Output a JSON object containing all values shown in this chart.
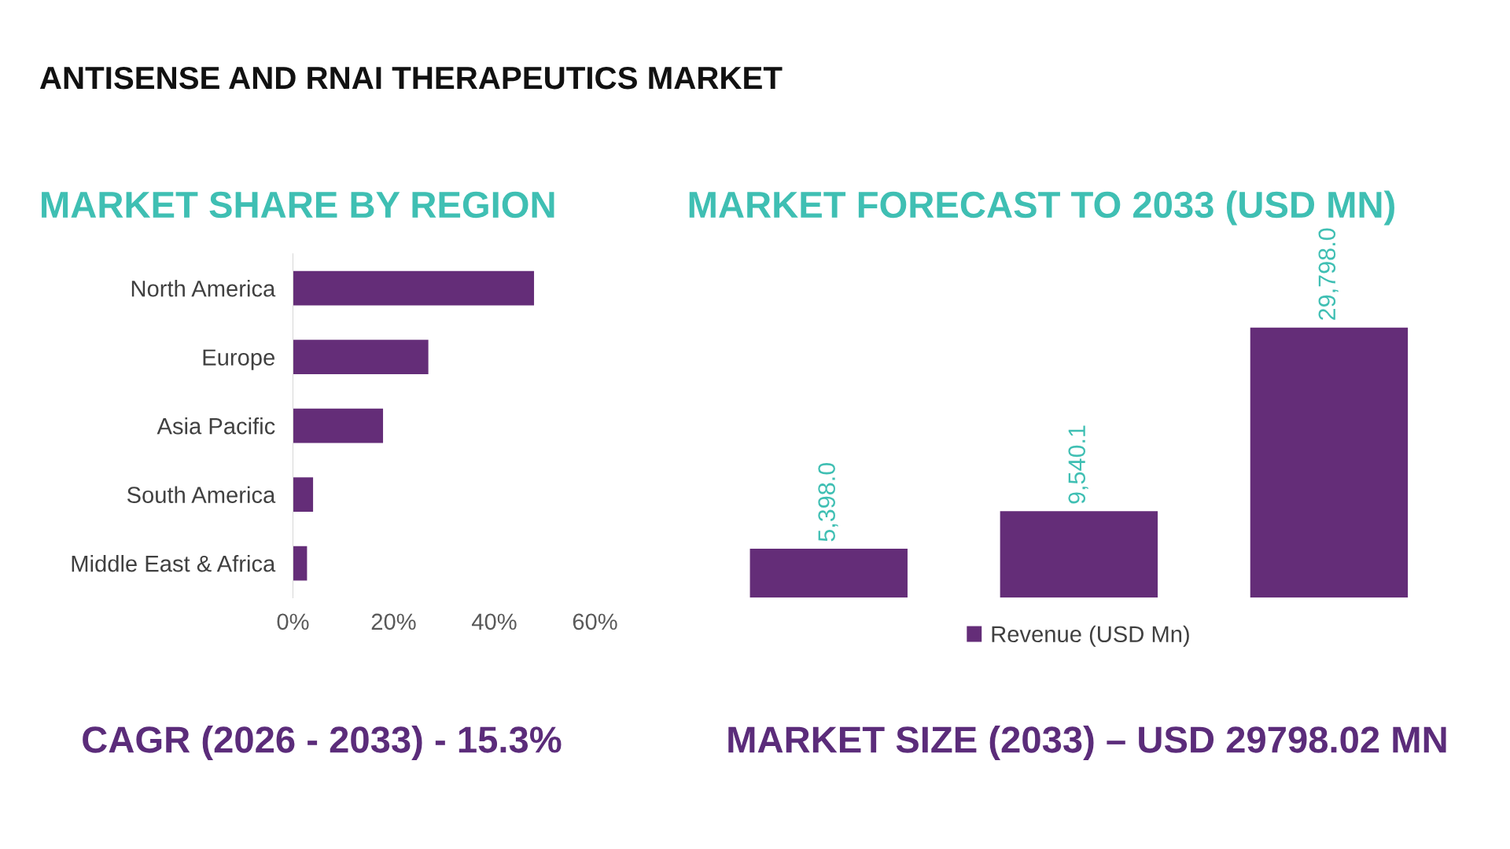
{
  "chart_data": [
    {
      "type": "bar",
      "orientation": "horizontal",
      "title": "ANTISENSE AND RNAI THERAPEUTICS MARKET",
      "subtitle": "MARKET SHARE BY REGION",
      "categories": [
        "North America",
        "Europe",
        "Asia Pacific",
        "South America",
        "Middle East & Africa"
      ],
      "values": [
        47.9,
        26.9,
        17.9,
        4.0,
        2.8
      ],
      "color": "#642d78",
      "xlim": [
        0,
        60
      ],
      "xticks": [
        {
          "value": 0,
          "label": "0%"
        },
        {
          "value": 20,
          "label": "20%"
        },
        {
          "value": 40,
          "label": "40%"
        },
        {
          "value": 60,
          "label": "60%"
        }
      ],
      "grid": false,
      "legend": false,
      "annotations": [
        "CAGR (2026 - 2033) - 15.3%"
      ]
    },
    {
      "type": "bar",
      "title": "MARKET FORECAST TO 2033 (USD MN)",
      "categories": [
        null,
        null,
        null
      ],
      "series": [
        {
          "name": "Revenue (USD Mn)",
          "color": "#642d78",
          "values": [
            5398.0,
            9540.1,
            29798.0
          ],
          "value_labels": [
            "5,398.0",
            "9,540.1",
            "29,798.0"
          ]
        }
      ],
      "grid": false,
      "legend": "bottom",
      "annotations": [
        "MARKET SIZE (2033) – USD 29798.02 MN"
      ]
    }
  ]
}
